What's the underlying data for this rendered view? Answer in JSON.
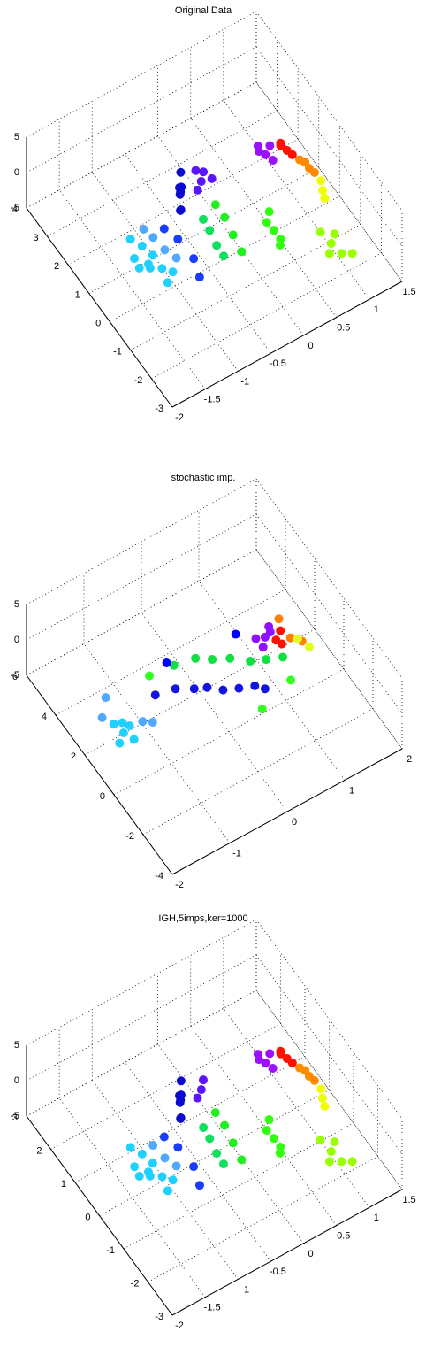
{
  "chart_data": [
    {
      "type": "scatter3d",
      "title": "Original Data",
      "grid": true,
      "xlim": [
        -2,
        1.5
      ],
      "ylim": [
        -3,
        4
      ],
      "zlim": [
        -5,
        5
      ],
      "xticks": [
        -2,
        -1.5,
        -1,
        -0.5,
        0,
        0.5,
        1,
        1.5
      ],
      "yticks": [
        -3,
        -2,
        -1,
        0,
        1,
        2,
        3,
        4
      ],
      "zticks": [
        -5,
        0,
        5
      ],
      "series": [
        {
          "color": "#0a0ad0",
          "x": [
            -0.35,
            -0.42,
            -0.48,
            -0.55,
            -0.6,
            -0.64,
            -0.4,
            -0.5
          ],
          "y": [
            1.8,
            1.6,
            1.4,
            1.2,
            1.0,
            0.9,
            1.7,
            1.3
          ],
          "z": [
            0.5,
            -0.5,
            0,
            0.8,
            -0.3,
            0.2,
            -1,
            1.2
          ]
        },
        {
          "color": "#5a14ff",
          "x": [
            -0.17,
            -0.1,
            -0.25,
            -0.05,
            -0.2
          ],
          "y": [
            1.38,
            1.5,
            1.3,
            1.25,
            1.55
          ],
          "z": [
            0,
            0.5,
            -0.5,
            0.3,
            1
          ]
        },
        {
          "color": "#20d0ff",
          "x": [
            -1.4,
            -1.35,
            -1.38,
            -1.3,
            -1.34,
            -1.5,
            -1.45,
            -1.25,
            -1.55,
            -1.2
          ],
          "y": [
            0.9,
            0.5,
            0.1,
            -0.3,
            -0.7,
            0.4,
            -0.2,
            0.3,
            0,
            -0.5
          ],
          "z": [
            0,
            0.4,
            -0.4,
            0.2,
            0,
            -0.2,
            0.6,
            -0.6,
            0.3,
            0
          ]
        },
        {
          "color": "#50a8ff",
          "x": [
            -1.15,
            -1.1,
            -1.05,
            -1.2
          ],
          "y": [
            0.6,
            0.2,
            -0.2,
            0.9
          ],
          "z": [
            0.2,
            -0.2,
            0,
            0.4
          ]
        },
        {
          "color": "#1a3cff",
          "x": [
            -0.95,
            -0.9,
            -0.85,
            -0.95
          ],
          "y": [
            0.7,
            0.2,
            -0.4,
            -1.0
          ],
          "z": [
            0,
            0.3,
            -0.3,
            0
          ]
        },
        {
          "color": "#10e060",
          "x": [
            -0.45,
            -0.48,
            -0.5,
            -0.52
          ],
          "y": [
            0.4,
            0,
            -0.4,
            -0.8
          ],
          "z": [
            0,
            0.2,
            -0.2,
            0
          ]
        },
        {
          "color": "#20f020",
          "x": [
            -0.2,
            -0.22,
            -0.25,
            -0.28
          ],
          "y": [
            0.6,
            0.1,
            -0.4,
            -0.9
          ],
          "z": [
            0,
            0.3,
            0,
            -0.2
          ]
        },
        {
          "color": "#30ff10",
          "x": [
            0.23,
            0.2,
            0.25,
            0.3,
            0.18
          ],
          "y": [
            -0.84,
            -0.6,
            -1.1,
            -0.4,
            -1.3
          ],
          "z": [
            0,
            0.3,
            -0.3,
            0.5,
            0
          ]
        },
        {
          "color": "#9aff00",
          "x": [
            0.75,
            0.7,
            0.8,
            0.85,
            0.68,
            0.9
          ],
          "y": [
            -1.96,
            -1.6,
            -2.3,
            -1.8,
            -2.1,
            -2.5
          ],
          "z": [
            0,
            0.4,
            -0.3,
            0.2,
            -0.5,
            0
          ]
        },
        {
          "color": "#9a10ff",
          "x": [
            0.74,
            0.7,
            0.8,
            0.65,
            0.85
          ],
          "y": [
            1.17,
            1.4,
            1.0,
            1.2,
            1.3
          ],
          "z": [
            0,
            0.5,
            -0.4,
            0.8,
            0.2
          ]
        },
        {
          "color": "#ff1000",
          "x": [
            1.01,
            0.95,
            1.05,
            0.98
          ],
          "y": [
            0.98,
            1.1,
            0.85,
            1.2
          ],
          "z": [
            0,
            0.5,
            -0.3,
            0.3
          ]
        },
        {
          "color": "#ff8a00",
          "x": [
            1.11,
            1.05,
            1.15,
            1.1
          ],
          "y": [
            0.23,
            0.5,
            0.1,
            0.4
          ],
          "z": [
            0,
            0.4,
            -0.3,
            0.2
          ]
        },
        {
          "color": "#f0ff00",
          "x": [
            1.08,
            1.12,
            1.05
          ],
          "y": [
            -0.51,
            -0.3,
            -0.7
          ],
          "z": [
            0,
            0.3,
            -0.2
          ]
        }
      ]
    },
    {
      "type": "scatter3d",
      "title": "stochastic imp.",
      "grid": true,
      "xlim": [
        -2,
        2
      ],
      "ylim": [
        -4,
        6
      ],
      "zlim": [
        -5,
        5
      ],
      "xticks": [
        -2,
        -1,
        0,
        1,
        2
      ],
      "yticks": [
        -4,
        -2,
        0,
        2,
        4,
        6
      ],
      "zticks": [
        -5,
        0,
        5
      ],
      "series": [
        {
          "color": "#20d0ff",
          "x": [
            -1.64,
            -1.7,
            -1.55,
            -1.6,
            -1.75,
            -1.5
          ],
          "y": [
            0.76,
            1.2,
            0.4,
            1.0,
            0.6,
            0.9
          ],
          "z": [
            0,
            0.3,
            -0.3,
            0.6,
            -0.5,
            0
          ]
        },
        {
          "color": "#50a8ff",
          "x": [
            -1.3,
            -1.2,
            -1.54,
            -1.8
          ],
          "y": [
            0.8,
            0.5,
            2.38,
            1.6
          ],
          "z": [
            0,
            0.3,
            0,
            0.5
          ]
        },
        {
          "color": "#1414e0",
          "x": [
            -0.36,
            -0.2,
            0,
            0.2,
            0.4,
            0.52,
            -0.6,
            -0.9
          ],
          "y": [
            0.96,
            0.7,
            0.4,
            0.1,
            -0.2,
            -0.43,
            1.3,
            1.5
          ],
          "z": [
            0,
            0.2,
            -0.2,
            0,
            0.3,
            0,
            0.1,
            0
          ]
        },
        {
          "color": "#10e040",
          "x": [
            0.13,
            0.35,
            0.6,
            0.8,
            1.01,
            -0.4,
            -0.1
          ],
          "y": [
            1.66,
            1.3,
            0.9,
            0.6,
            0.28,
            2.2,
            1.9
          ],
          "z": [
            0,
            0.2,
            -0.2,
            0,
            0.3,
            0,
            0.5
          ]
        },
        {
          "color": "#30ff20",
          "x": [
            -0.8,
            0.9,
            0.3
          ],
          "y": [
            2.3,
            -0.7,
            -1.1
          ],
          "z": [
            0,
            0.3,
            0
          ]
        },
        {
          "color": "#9010ff",
          "x": [
            0.99,
            1.1,
            0.9,
            1.05,
            0.85
          ],
          "y": [
            1.42,
            1.6,
            1.2,
            1.3,
            1.5
          ],
          "z": [
            0,
            0.5,
            -0.4,
            0.8,
            0.2
          ]
        },
        {
          "color": "#ff1000",
          "x": [
            1.1,
            1.2,
            1.15
          ],
          "y": [
            1.1,
            1.2,
            0.9
          ],
          "z": [
            0,
            0.6,
            -0.2
          ]
        },
        {
          "color": "#ff8000",
          "x": [
            1.3,
            1.25,
            1.4
          ],
          "y": [
            0.9,
            1.5,
            0.5
          ],
          "z": [
            0,
            1.2,
            0.2
          ]
        },
        {
          "color": "#e0ff20",
          "x": [
            1.35,
            1.45
          ],
          "y": [
            0.6,
            0.2
          ],
          "z": [
            0.5,
            0
          ]
        },
        {
          "color": "#0000ff",
          "x": [
            -0.5,
            0.6
          ],
          "y": [
            2.3,
            1.9
          ],
          "z": [
            0.5,
            0.8
          ]
        }
      ]
    },
    {
      "type": "scatter3d",
      "title": "IGH,5imps,ker=1000",
      "grid": true,
      "xlim": [
        -2,
        1.5
      ],
      "ylim": [
        -3,
        3
      ],
      "zlim": [
        -5,
        5
      ],
      "xticks": [
        -2,
        -1.5,
        -1,
        -0.5,
        0,
        0.5,
        1,
        1.5
      ],
      "yticks": [
        -3,
        -2,
        -1,
        0,
        1,
        2,
        3
      ],
      "zticks": [
        -5,
        0,
        5
      ],
      "series": [
        {
          "color": "#0a0ad0",
          "x": [
            -0.35,
            -0.42,
            -0.48,
            -0.55,
            -0.6,
            -0.64,
            -0.4,
            -0.5
          ],
          "y": [
            1.1,
            0.94,
            0.77,
            0.6,
            0.43,
            0.34,
            1.03,
            0.69
          ],
          "z": [
            0.5,
            -0.5,
            0,
            0.8,
            -0.3,
            0.2,
            -1,
            1.2
          ]
        },
        {
          "color": "#5a14ff",
          "x": [
            -0.17,
            -0.1,
            -0.25
          ],
          "y": [
            0.75,
            0.86,
            0.69
          ],
          "z": [
            0,
            0.5,
            -0.5
          ]
        },
        {
          "color": "#20d0ff",
          "x": [
            -1.4,
            -1.35,
            -1.38,
            -1.3,
            -1.34,
            -1.5,
            -1.45,
            -1.25,
            -1.55,
            -1.2
          ],
          "y": [
            0.34,
            0.0,
            -0.34,
            -0.69,
            -1.03,
            -0.09,
            -0.6,
            -0.17,
            -0.43,
            -0.86
          ],
          "z": [
            0,
            0.4,
            -0.4,
            0.2,
            0,
            -0.2,
            0.6,
            -0.6,
            0.3,
            0
          ]
        },
        {
          "color": "#50a8ff",
          "x": [
            -1.15,
            -1.1,
            -1.05
          ],
          "y": [
            0.09,
            -0.26,
            -0.6
          ],
          "z": [
            0.2,
            -0.2,
            0
          ]
        },
        {
          "color": "#1a3cff",
          "x": [
            -0.95,
            -0.9,
            -0.85,
            -0.95
          ],
          "y": [
            0.17,
            -0.26,
            -0.77,
            -1.29
          ],
          "z": [
            0,
            0.3,
            -0.3,
            0
          ]
        },
        {
          "color": "#10e060",
          "x": [
            -0.45,
            -0.48,
            -0.5,
            -0.52
          ],
          "y": [
            -0.09,
            -0.43,
            -0.77,
            -1.11
          ],
          "z": [
            0,
            0.2,
            -0.2,
            0
          ]
        },
        {
          "color": "#20f020",
          "x": [
            -0.2,
            -0.22,
            -0.25,
            -0.28
          ],
          "y": [
            0.09,
            -0.34,
            -0.77,
            -1.2
          ],
          "z": [
            0,
            0.3,
            0,
            -0.2
          ]
        },
        {
          "color": "#30ff10",
          "x": [
            0.23,
            0.2,
            0.25,
            0.3,
            0.18
          ],
          "y": [
            -1.15,
            -0.94,
            -1.37,
            -0.77,
            -1.54
          ],
          "z": [
            0,
            0.3,
            -0.3,
            0.5,
            0
          ]
        },
        {
          "color": "#9aff00",
          "x": [
            0.75,
            0.7,
            0.8,
            0.85,
            0.68,
            0.9
          ],
          "y": [
            -2.11,
            -1.8,
            -2.4,
            -1.97,
            -2.23,
            -2.57
          ],
          "z": [
            0,
            0.4,
            -0.3,
            0.2,
            -0.5,
            0
          ]
        },
        {
          "color": "#9a10ff",
          "x": [
            0.74,
            0.7,
            0.8,
            0.65,
            0.85
          ],
          "y": [
            0.57,
            0.77,
            0.43,
            0.6,
            0.69
          ],
          "z": [
            0,
            0.5,
            -0.4,
            0.8,
            0.2
          ]
        },
        {
          "color": "#ff1000",
          "x": [
            1.01,
            0.95,
            1.05,
            0.98
          ],
          "y": [
            0.41,
            0.51,
            0.3,
            0.6
          ],
          "z": [
            0,
            0.5,
            -0.3,
            0.3
          ]
        },
        {
          "color": "#ff8a00",
          "x": [
            1.11,
            1.05,
            1.15,
            1.1
          ],
          "y": [
            -0.23,
            0.0,
            -0.34,
            -0.09
          ],
          "z": [
            0,
            0.4,
            -0.3,
            0.2
          ]
        },
        {
          "color": "#f0ff00",
          "x": [
            1.08,
            1.12,
            1.05
          ],
          "y": [
            -0.86,
            -0.69,
            -1.03
          ],
          "z": [
            0,
            0.3,
            -0.2
          ]
        }
      ]
    }
  ]
}
